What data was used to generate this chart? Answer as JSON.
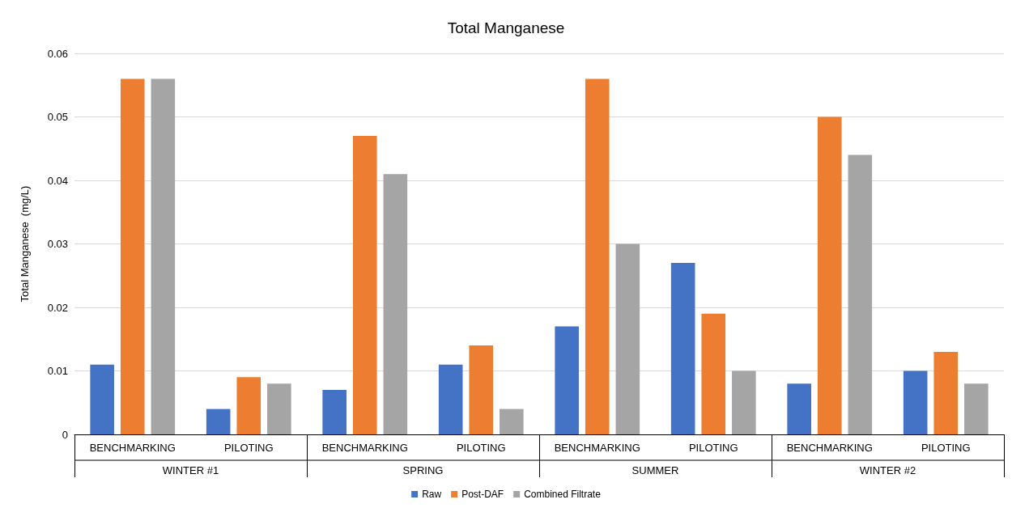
{
  "chart_data": {
    "type": "bar",
    "title": "Total Manganese",
    "ylabel": "Total Manganese  (mg/L)",
    "categories": [
      "BENCHMARKING",
      "PILOTING",
      "BENCHMARKING",
      "PILOTING",
      "BENCHMARKING",
      "PILOTING",
      "BENCHMARKING",
      "PILOTING"
    ],
    "annotations": [
      "WINTER #1",
      "SPRING",
      "SUMMER",
      "WINTER #2"
    ],
    "series": [
      {
        "name": "Raw",
        "color": "#4472c4",
        "values": [
          0.011,
          0.004,
          0.007,
          0.011,
          0.017,
          0.027,
          0.008,
          0.01
        ]
      },
      {
        "name": "Post-DAF",
        "color": "#ed7d31",
        "values": [
          0.056,
          0.009,
          0.047,
          0.014,
          0.056,
          0.019,
          0.05,
          0.013
        ]
      },
      {
        "name": "Combined Filtrate",
        "color": "#a5a5a5",
        "values": [
          0.056,
          0.008,
          0.041,
          0.004,
          0.03,
          0.01,
          0.044,
          0.008
        ]
      }
    ],
    "ylim": [
      0,
      0.06
    ],
    "yticks": [
      0,
      0.01,
      0.02,
      0.03,
      0.04,
      0.05,
      0.06
    ],
    "grid": "y",
    "legend": "bottom"
  }
}
